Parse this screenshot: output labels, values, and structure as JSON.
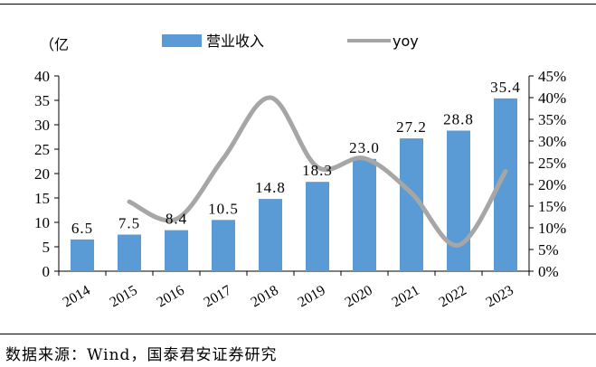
{
  "chart_data": {
    "type": "bar",
    "unit_label": "（亿",
    "categories": [
      "2014",
      "2015",
      "2016",
      "2017",
      "2018",
      "2019",
      "2020",
      "2021",
      "2022",
      "2023"
    ],
    "series": [
      {
        "name": "营业收入",
        "type": "bar",
        "axis": "left",
        "values": [
          6.5,
          7.5,
          8.4,
          10.5,
          14.8,
          18.3,
          23.0,
          27.2,
          28.8,
          35.4
        ],
        "labels": [
          "6.5",
          "7.5",
          "8.4",
          "10.5",
          "14.8",
          "18.3",
          "23.0",
          "27.2",
          "28.8",
          "35.4"
        ],
        "color": "#5B9BD5"
      },
      {
        "name": "yoy",
        "type": "line",
        "axis": "right",
        "values": [
          null,
          0.16,
          0.12,
          0.26,
          0.4,
          0.24,
          0.26,
          0.18,
          0.06,
          0.23
        ],
        "color": "#A6A6A6"
      }
    ],
    "left_axis": {
      "min": 0,
      "max": 40,
      "ticks": [
        "0",
        "5",
        "10",
        "15",
        "20",
        "25",
        "30",
        "35",
        "40"
      ]
    },
    "right_axis": {
      "min": 0,
      "max": 0.45,
      "ticks": [
        "0%",
        "5%",
        "10%",
        "15%",
        "20%",
        "25%",
        "30%",
        "35%",
        "40%",
        "45%"
      ]
    },
    "grid": false,
    "legend_position": "top"
  },
  "source": "数据来源：Wind，国泰君安证券研究"
}
